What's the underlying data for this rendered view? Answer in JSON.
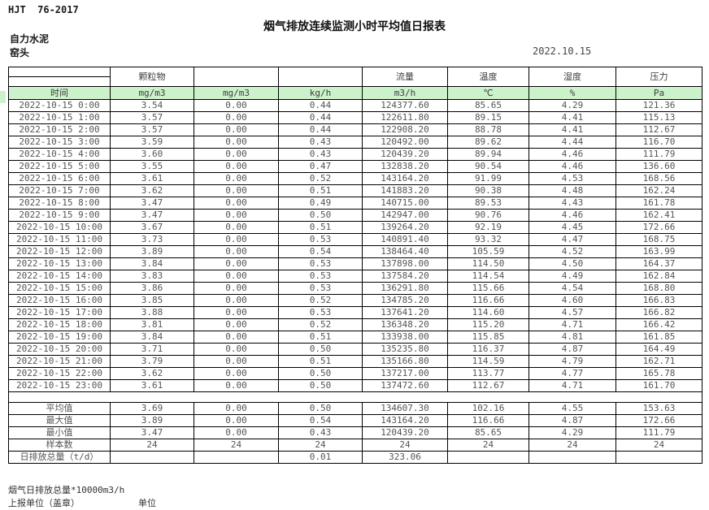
{
  "page": {
    "doc_code": "HJT  76-2017",
    "title": "烟气排放连续监测小时平均值日报表",
    "company": "自力水泥",
    "station": "窑头",
    "date": "2022.10.15"
  },
  "colors": {
    "header_green": "#ccf2cc",
    "border": "#000000"
  },
  "table": {
    "group_headers": {
      "particulate": "颗粒物",
      "flow": "流量",
      "temperature": "温度",
      "humidity": "湿度",
      "pressure": "压力"
    },
    "unit_row": [
      "时间",
      "mg/m3",
      "mg/m3",
      "kg/h",
      "m3/h",
      "℃",
      "%",
      "Pa"
    ],
    "rows": [
      [
        "2022-10-15 0:00",
        "3.54",
        "0.00",
        "0.44",
        "124377.60",
        "85.65",
        "4.29",
        "121.36"
      ],
      [
        "2022-10-15 1:00",
        "3.57",
        "0.00",
        "0.44",
        "122611.80",
        "89.15",
        "4.41",
        "115.13"
      ],
      [
        "2022-10-15 2:00",
        "3.57",
        "0.00",
        "0.44",
        "122908.20",
        "88.78",
        "4.41",
        "112.67"
      ],
      [
        "2022-10-15 3:00",
        "3.59",
        "0.00",
        "0.43",
        "120492.00",
        "89.62",
        "4.44",
        "116.70"
      ],
      [
        "2022-10-15 4:00",
        "3.60",
        "0.00",
        "0.43",
        "120439.20",
        "89.94",
        "4.46",
        "111.79"
      ],
      [
        "2022-10-15 5:00",
        "3.55",
        "0.00",
        "0.47",
        "132838.20",
        "90.54",
        "4.46",
        "136.60"
      ],
      [
        "2022-10-15 6:00",
        "3.61",
        "0.00",
        "0.52",
        "143164.20",
        "91.99",
        "4.53",
        "168.56"
      ],
      [
        "2022-10-15 7:00",
        "3.62",
        "0.00",
        "0.51",
        "141883.20",
        "90.38",
        "4.48",
        "162.24"
      ],
      [
        "2022-10-15 8:00",
        "3.47",
        "0.00",
        "0.49",
        "140715.00",
        "89.53",
        "4.43",
        "161.78"
      ],
      [
        "2022-10-15 9:00",
        "3.47",
        "0.00",
        "0.50",
        "142947.00",
        "90.76",
        "4.46",
        "162.41"
      ],
      [
        "2022-10-15 10:00",
        "3.67",
        "0.00",
        "0.51",
        "139264.20",
        "92.19",
        "4.45",
        "172.66"
      ],
      [
        "2022-10-15 11:00",
        "3.73",
        "0.00",
        "0.53",
        "140891.40",
        "93.32",
        "4.47",
        "168.75"
      ],
      [
        "2022-10-15 12:00",
        "3.89",
        "0.00",
        "0.54",
        "138464.40",
        "105.59",
        "4.52",
        "163.99"
      ],
      [
        "2022-10-15 13:00",
        "3.84",
        "0.00",
        "0.53",
        "137898.00",
        "114.50",
        "4.50",
        "164.37"
      ],
      [
        "2022-10-15 14:00",
        "3.83",
        "0.00",
        "0.53",
        "137584.20",
        "114.54",
        "4.49",
        "162.84"
      ],
      [
        "2022-10-15 15:00",
        "3.86",
        "0.00",
        "0.53",
        "136291.80",
        "115.66",
        "4.54",
        "168.80"
      ],
      [
        "2022-10-15 16:00",
        "3.85",
        "0.00",
        "0.52",
        "134785.20",
        "116.66",
        "4.60",
        "166.83"
      ],
      [
        "2022-10-15 17:00",
        "3.88",
        "0.00",
        "0.53",
        "137641.20",
        "114.60",
        "4.57",
        "166.82"
      ],
      [
        "2022-10-15 18:00",
        "3.81",
        "0.00",
        "0.52",
        "136348.20",
        "115.20",
        "4.71",
        "166.42"
      ],
      [
        "2022-10-15 19:00",
        "3.84",
        "0.00",
        "0.51",
        "133938.00",
        "115.85",
        "4.81",
        "161.85"
      ],
      [
        "2022-10-15 20:00",
        "3.71",
        "0.00",
        "0.50",
        "135235.80",
        "116.37",
        "4.87",
        "164.49"
      ],
      [
        "2022-10-15 21:00",
        "3.79",
        "0.00",
        "0.51",
        "135166.80",
        "114.59",
        "4.79",
        "162.71"
      ],
      [
        "2022-10-15 22:00",
        "3.62",
        "0.00",
        "0.50",
        "137217.00",
        "113.77",
        "4.77",
        "165.78"
      ],
      [
        "2022-10-15 23:00",
        "3.61",
        "0.00",
        "0.50",
        "137472.60",
        "112.67",
        "4.71",
        "161.70"
      ]
    ],
    "summary": [
      [
        "平均值",
        "3.69",
        "0.00",
        "0.50",
        "134607.30",
        "102.16",
        "4.55",
        "153.63"
      ],
      [
        "最大值",
        "3.89",
        "0.00",
        "0.54",
        "143164.20",
        "116.66",
        "4.87",
        "172.66"
      ],
      [
        "最小值",
        "3.47",
        "0.00",
        "0.43",
        "120439.20",
        "85.65",
        "4.29",
        "111.79"
      ],
      [
        "样本数",
        "24",
        "24",
        "24",
        "24",
        "24",
        "24",
        "24"
      ],
      [
        "日排放总量（t/d）",
        "",
        "",
        "0.01",
        "323.06",
        "",
        "",
        ""
      ]
    ]
  },
  "footer": {
    "note": "烟气日排放总量*10000m3/h",
    "report_unit": "上报单位（盖章）",
    "unit_label": "单位"
  }
}
